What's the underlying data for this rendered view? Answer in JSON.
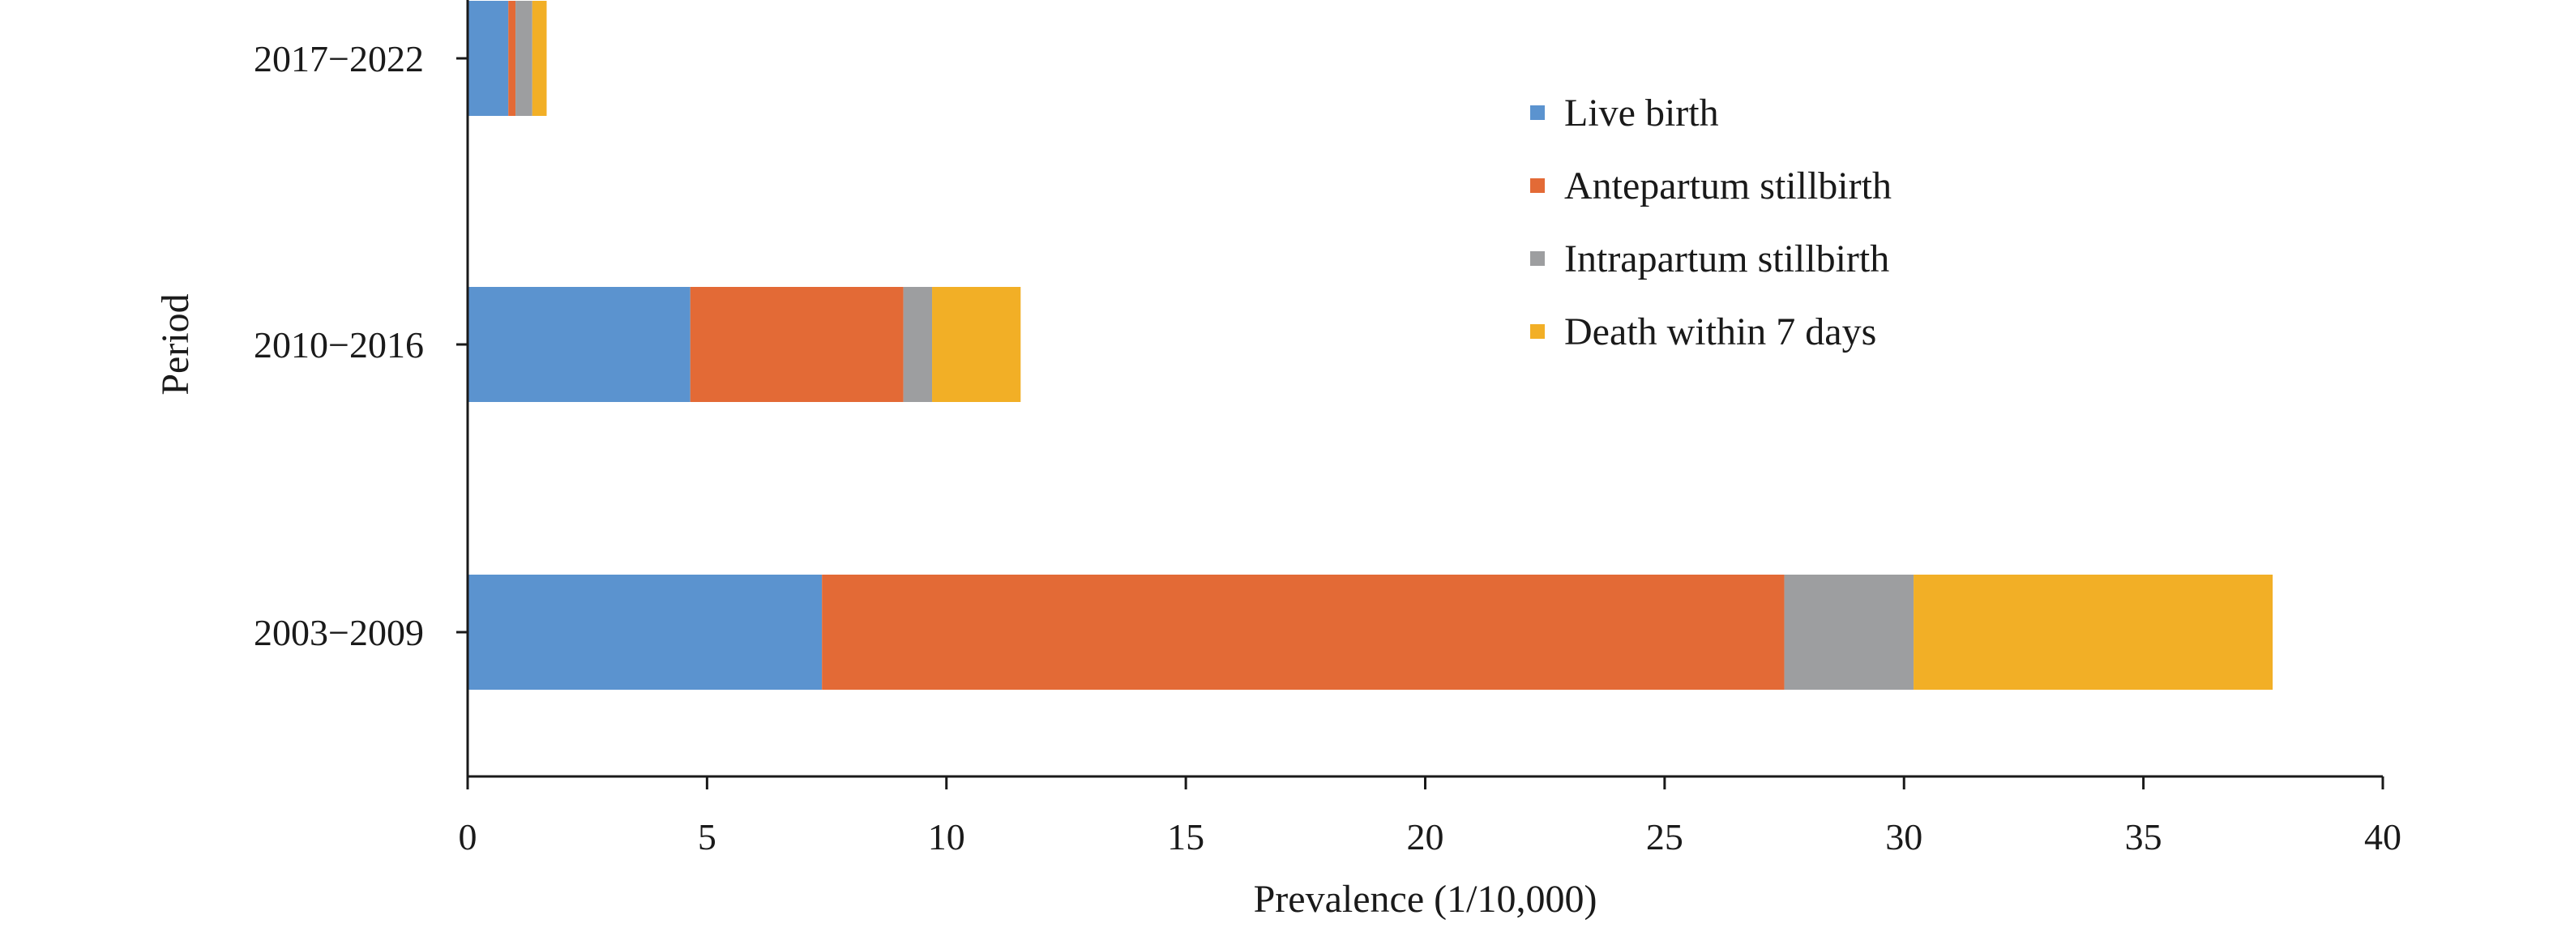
{
  "chart_data": {
    "type": "bar",
    "orientation": "horizontal",
    "stacked": true,
    "categories": [
      "2017−2022",
      "2010−2016",
      "2003−2009"
    ],
    "series": [
      {
        "name": "Live birth",
        "color": "#5B93CF",
        "values": [
          0.85,
          4.65,
          7.4
        ]
      },
      {
        "name": "Antepartum stillbirth",
        "color": "#E36A36",
        "values": [
          0.15,
          4.45,
          20.1
        ]
      },
      {
        "name": "Intrapartum stillbirth",
        "color": "#9D9EA0",
        "values": [
          0.35,
          0.6,
          2.7
        ]
      },
      {
        "name": "Death within 7 days",
        "color": "#F2AF26",
        "values": [
          0.3,
          1.85,
          7.5
        ]
      }
    ],
    "title": "",
    "xlabel": "Prevalence (1/10,000)",
    "ylabel": "Period",
    "xlim": [
      0,
      40
    ],
    "xticks": [
      0,
      5,
      10,
      15,
      20,
      25,
      30,
      35,
      40
    ],
    "grid": false,
    "legend_position": "top-right"
  }
}
